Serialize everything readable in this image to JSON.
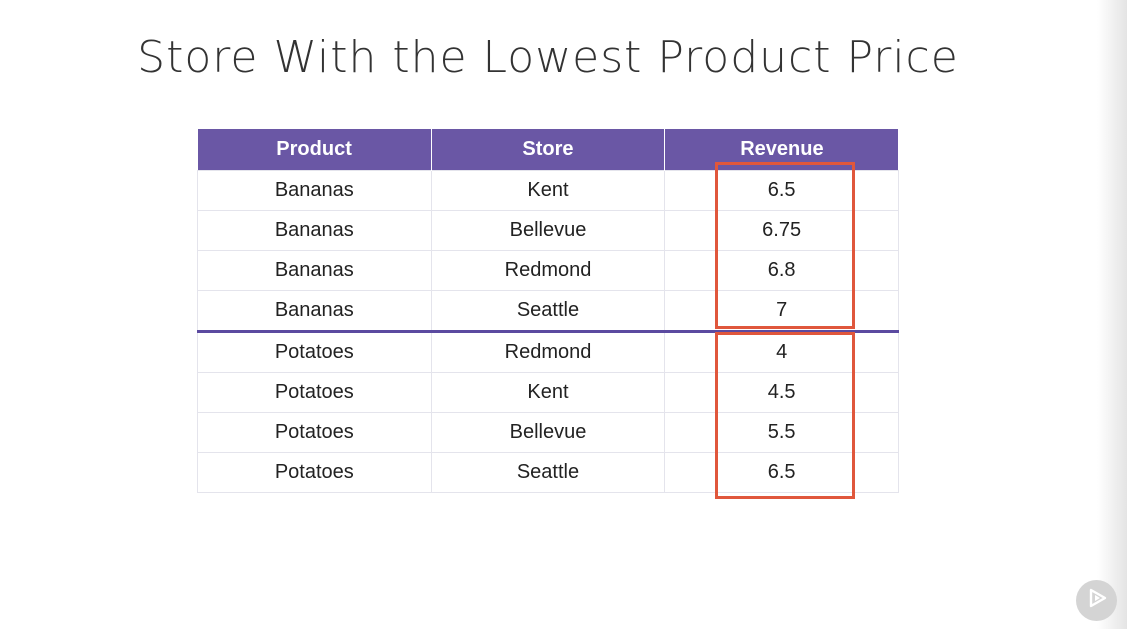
{
  "slide": {
    "title": "Store With the Lowest Product Price"
  },
  "table": {
    "headers": [
      "Product",
      "Store",
      "Revenue"
    ],
    "rows": [
      [
        "Bananas",
        "Kent",
        "6.5"
      ],
      [
        "Bananas",
        "Bellevue",
        "6.75"
      ],
      [
        "Bananas",
        "Redmond",
        "6.8"
      ],
      [
        "Bananas",
        "Seattle",
        "7"
      ],
      [
        "Potatoes",
        "Redmond",
        "4"
      ],
      [
        "Potatoes",
        "Kent",
        "4.5"
      ],
      [
        "Potatoes",
        "Bellevue",
        "5.5"
      ],
      [
        "Potatoes",
        "Seattle",
        "6.5"
      ]
    ]
  },
  "colors": {
    "header_bg": "#6a57a5",
    "highlight": "#e0573c",
    "group_divider": "#5b4aa0"
  },
  "icons": {
    "player": "play-icon"
  }
}
